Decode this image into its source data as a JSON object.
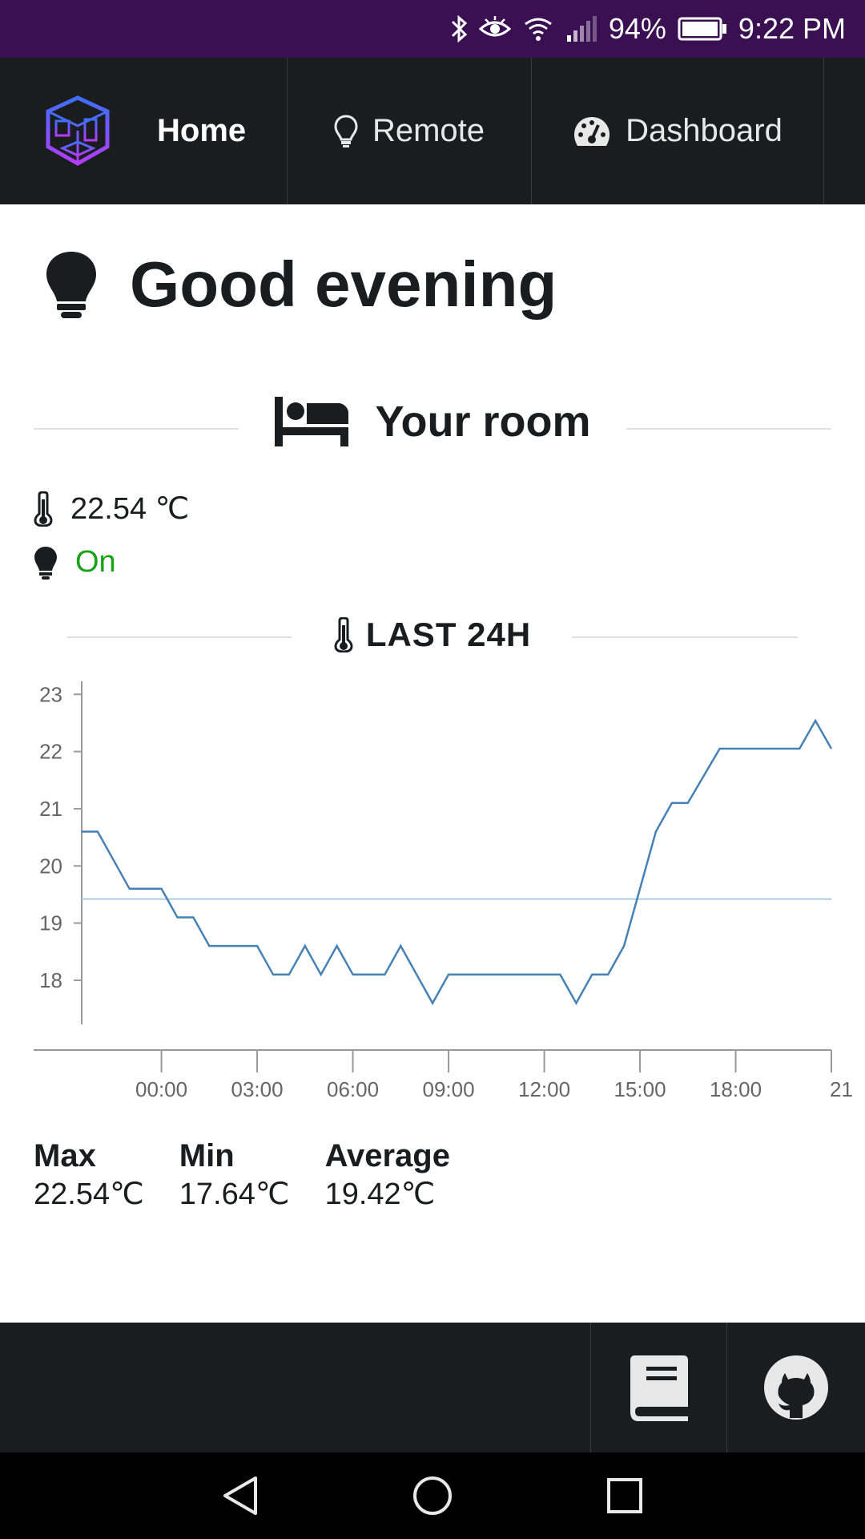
{
  "status_bar": {
    "battery": "94%",
    "time": "9:22 PM",
    "icons": [
      "bluetooth-icon",
      "eye-icon",
      "wifi-icon",
      "signal-icon",
      "battery-icon"
    ]
  },
  "nav": {
    "home_label": "Home",
    "remote_label": "Remote",
    "dashboard_label": "Dashboard",
    "brand_color": "#7b4dff"
  },
  "greeting": {
    "title": "Good evening"
  },
  "room": {
    "title": "Your room",
    "temperature": "22.54 ℃",
    "light_status": "On",
    "status_color": "#16a316"
  },
  "chart_section": {
    "title": "LAST 24H"
  },
  "chart_data": {
    "type": "line",
    "title": "LAST 24H",
    "xlabel": "",
    "ylabel": "",
    "ylim": [
      17.2,
      23.2
    ],
    "xlim": [
      -2.5,
      21.0
    ],
    "y_ticks": [
      "23",
      "22",
      "21",
      "20",
      "19",
      "18"
    ],
    "y_tick_values": [
      23,
      22,
      21,
      20,
      19,
      18
    ],
    "x_ticks": [
      "00:00",
      "03:00",
      "06:00",
      "09:00",
      "12:00",
      "15:00",
      "18:00",
      "21"
    ],
    "x_tick_values": [
      0,
      3,
      6,
      9,
      12,
      15,
      18,
      21
    ],
    "grid": false,
    "series": [
      {
        "x": [
          -2.5,
          -2.0,
          -1.0,
          0.0,
          0.5,
          1.0,
          1.5,
          2.0,
          3.0,
          3.5,
          4.0,
          4.5,
          5.0,
          5.5,
          6.0,
          6.5,
          7.0,
          7.5,
          8.5,
          9.0,
          9.5,
          10.0,
          12.5,
          13.0,
          13.5,
          14.0,
          14.5,
          15.5,
          16.0,
          16.5,
          17.5,
          18.0,
          20.0,
          20.5,
          21.0
        ],
        "values": [
          20.6,
          20.6,
          19.6,
          19.6,
          19.1,
          19.1,
          18.6,
          18.6,
          18.6,
          18.1,
          18.1,
          18.6,
          18.1,
          18.6,
          18.1,
          18.1,
          18.1,
          18.6,
          17.6,
          18.1,
          18.1,
          18.1,
          18.1,
          17.6,
          18.1,
          18.1,
          18.6,
          20.6,
          21.1,
          21.1,
          22.05,
          22.05,
          22.05,
          22.54,
          22.05
        ],
        "color": "#4682b4"
      }
    ],
    "reference_lines": [
      {
        "y": 19.42,
        "color": "#a9cce3"
      }
    ]
  },
  "stats": {
    "max_label": "Max",
    "max_value": "22.54℃",
    "min_label": "Min",
    "min_value": "17.64℃",
    "avg_label": "Average",
    "avg_value": "19.42℃"
  },
  "footer": {
    "icons": [
      "book-icon",
      "github-icon"
    ]
  },
  "android_nav": {
    "icons": [
      "back-icon",
      "home-icon",
      "recents-icon"
    ]
  }
}
